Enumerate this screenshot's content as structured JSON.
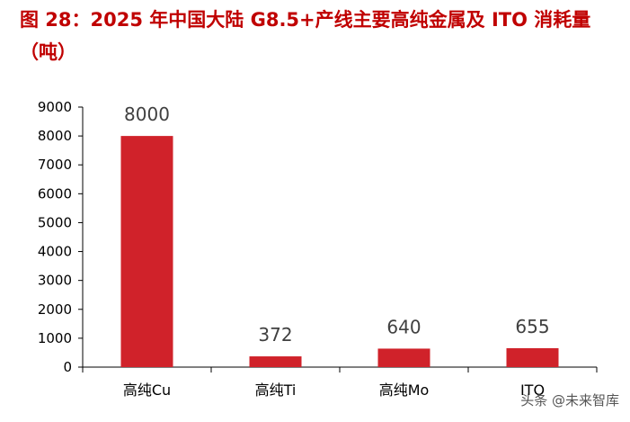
{
  "title": "图 28：2025 年中国大陆 G8.5+产线主要高纯金属及 ITO 消耗量（吨）",
  "watermark": "头条 @未来智库",
  "colors": {
    "title": "#c00000",
    "bar": "#d0222a",
    "axis": "#000000"
  },
  "chart_data": {
    "type": "bar",
    "title": "图 28：2025 年中国大陆 G8.5+产线主要高纯金属及 ITO 消耗量（吨）",
    "categories": [
      "高纯Cu",
      "高纯Ti",
      "高纯Mo",
      "ITO"
    ],
    "values": [
      8000,
      372,
      640,
      655
    ],
    "data_labels": [
      "8000",
      "372",
      "640",
      "655"
    ],
    "ylim": [
      0,
      9000
    ],
    "yticks": [
      0,
      1000,
      2000,
      3000,
      4000,
      5000,
      6000,
      7000,
      8000,
      9000
    ],
    "ytick_labels": [
      "0",
      "1000",
      "2000",
      "3000",
      "4000",
      "5000",
      "6000",
      "7000",
      "8000",
      "9000"
    ],
    "xlabel": "",
    "ylabel": "",
    "grid": false,
    "legend": "none"
  }
}
